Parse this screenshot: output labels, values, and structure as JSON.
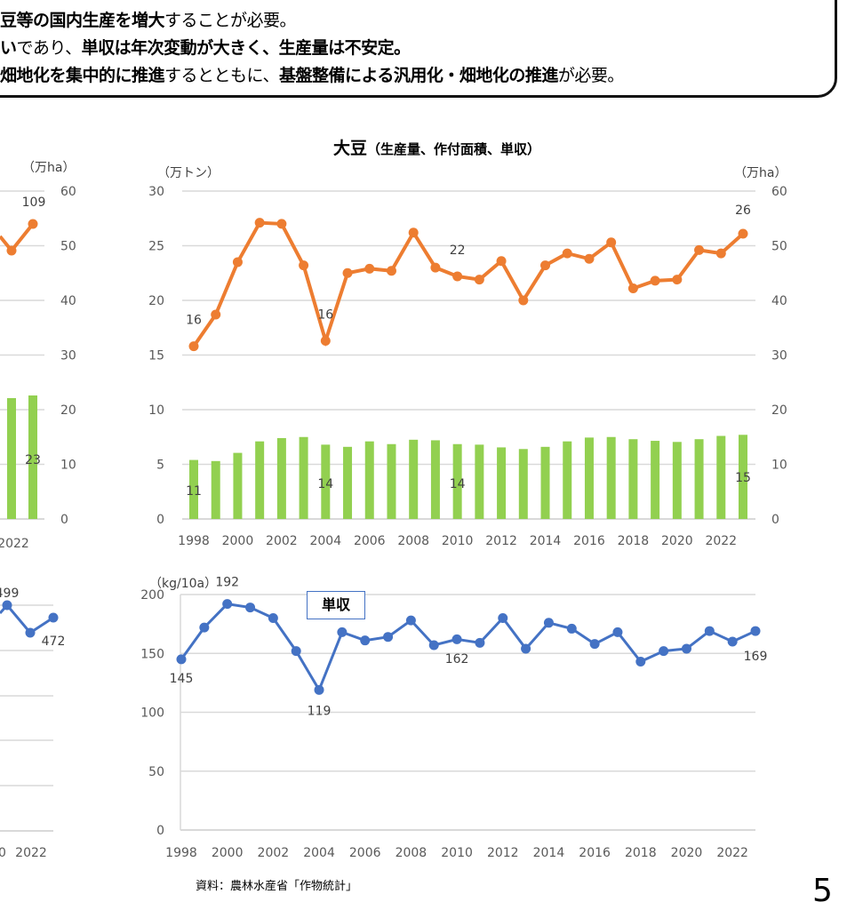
{
  "header": {
    "line1": [
      {
        "text": "豆等の国内生産を増大",
        "bold": true
      },
      {
        "text": "することが必要。",
        "bold": false
      }
    ],
    "line2": [
      {
        "text": "い",
        "bold": true
      },
      {
        "text": "であり、",
        "bold": false
      },
      {
        "text": "単収は年次変動が大きく、生産量は不安定。",
        "bold": true
      }
    ],
    "line3": [
      {
        "text": "畑地化を集中的に推進",
        "bold": true
      },
      {
        "text": "するとともに、",
        "bold": false
      },
      {
        "text": "基盤整備による汎用化・畑地化の推進",
        "bold": true
      },
      {
        "text": "が必要。",
        "bold": false
      }
    ]
  },
  "source": "資料：農林水産省「作物統計」",
  "page_number": "5",
  "colors": {
    "production": "#ed7d31",
    "area": "#92d050",
    "yield": "#4472c4",
    "grid": "#d9d9d9"
  },
  "chart_data": [
    {
      "type": "bar+line",
      "title": "大豆",
      "subtitle": "（生産量、作付面積、単収）",
      "ylabel": "（万トン）",
      "y2label": "（万ha）",
      "ylim": [
        0,
        30
      ],
      "y2lim": [
        0,
        60
      ],
      "yticks": [
        0,
        5,
        10,
        15,
        20,
        25,
        30
      ],
      "y2ticks": [
        0,
        10,
        20,
        30,
        40,
        50,
        60
      ],
      "x": [
        1998,
        1999,
        2000,
        2001,
        2002,
        2003,
        2004,
        2005,
        2006,
        2007,
        2008,
        2009,
        2010,
        2011,
        2012,
        2013,
        2014,
        2015,
        2016,
        2017,
        2018,
        2019,
        2020,
        2021,
        2022,
        2023
      ],
      "xticks": [
        "1998",
        "2000",
        "2002",
        "2004",
        "2006",
        "2008",
        "2010",
        "2012",
        "2014",
        "2016",
        "2018",
        "2020",
        "2022"
      ],
      "grid": true,
      "series": [
        {
          "kind": "line",
          "axis": "left",
          "values": [
            15.8,
            18.7,
            23.5,
            27.1,
            27.0,
            23.2,
            16.3,
            22.5,
            22.9,
            22.7,
            26.2,
            23.0,
            22.2,
            21.9,
            23.6,
            20.0,
            23.2,
            24.3,
            23.8,
            25.3,
            21.1,
            21.8,
            21.9,
            24.6,
            24.3,
            26.1
          ],
          "labels": [
            {
              "year": 1998,
              "text": "16"
            },
            {
              "year": 2004,
              "text": "16"
            },
            {
              "year": 2010,
              "text": "22"
            },
            {
              "year": 2023,
              "text": "26"
            }
          ]
        },
        {
          "kind": "bar",
          "axis": "right",
          "values": [
            10.8,
            10.6,
            12.1,
            14.2,
            14.8,
            15.0,
            13.6,
            13.2,
            14.2,
            13.7,
            14.5,
            14.4,
            13.7,
            13.6,
            13.1,
            12.8,
            13.2,
            14.2,
            14.9,
            15.0,
            14.6,
            14.3,
            14.1,
            14.6,
            15.2,
            15.4
          ],
          "labels": [
            {
              "year": 1998,
              "text": "11"
            },
            {
              "year": 2004,
              "text": "14"
            },
            {
              "year": 2010,
              "text": "14"
            },
            {
              "year": 2023,
              "text": "15"
            }
          ]
        }
      ]
    },
    {
      "type": "line",
      "title": "単収",
      "ylabel": "（kg/10a）",
      "ylim": [
        0,
        200
      ],
      "yticks": [
        0,
        50,
        100,
        150,
        200
      ],
      "x": [
        1998,
        1999,
        2000,
        2001,
        2002,
        2003,
        2004,
        2005,
        2006,
        2007,
        2008,
        2009,
        2010,
        2011,
        2012,
        2013,
        2014,
        2015,
        2016,
        2017,
        2018,
        2019,
        2020,
        2021,
        2022,
        2023
      ],
      "xticks": [
        "1998",
        "2000",
        "2002",
        "2004",
        "2006",
        "2008",
        "2010",
        "2012",
        "2014",
        "2016",
        "2018",
        "2020",
        "2022"
      ],
      "grid": true,
      "values": [
        145,
        172,
        192,
        189,
        180,
        152,
        119,
        168,
        161,
        164,
        178,
        157,
        162,
        159,
        180,
        154,
        176,
        171,
        158,
        168,
        143,
        152,
        154,
        169,
        160,
        169
      ],
      "labels": [
        {
          "year": 1998,
          "text": "145"
        },
        {
          "year": 2000,
          "text": "192"
        },
        {
          "year": 2004,
          "text": "119"
        },
        {
          "year": 2010,
          "text": "162"
        },
        {
          "year": 2023,
          "text": "169"
        }
      ]
    },
    {
      "type": "bar+line",
      "partial": true,
      "y2label": "（万ha）",
      "y2ticks": [
        0,
        10,
        20,
        30,
        40,
        50,
        60
      ],
      "xticks": [
        "2022"
      ],
      "line_labels": [
        "109"
      ],
      "bar_labels": [
        "23"
      ]
    },
    {
      "type": "line",
      "partial": true,
      "xticks": [
        "0",
        "2022"
      ],
      "labels": [
        "499",
        "472"
      ]
    }
  ]
}
